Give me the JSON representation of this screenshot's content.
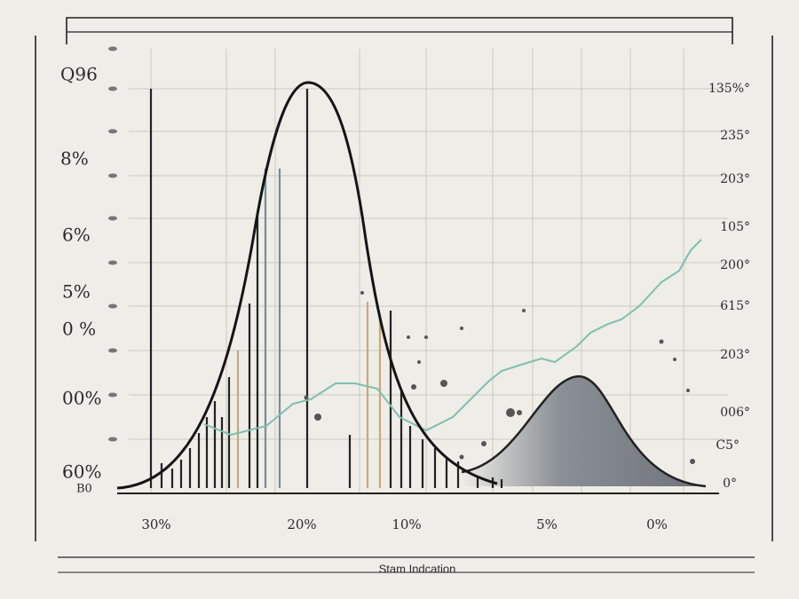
{
  "left_labels": [
    "Q96",
    "8%",
    "6%",
    "5%",
    "0 %",
    "00%",
    "60%",
    "B0"
  ],
  "right_labels": [
    "135%°",
    "235°",
    "203°",
    "105°",
    "200°",
    "615°",
    "203°",
    "006°",
    "C5°",
    "0°"
  ],
  "bottom_labels": [
    "30%",
    "20%",
    "10%",
    "5%",
    "0%"
  ],
  "caption": "Stam Indcation"
}
